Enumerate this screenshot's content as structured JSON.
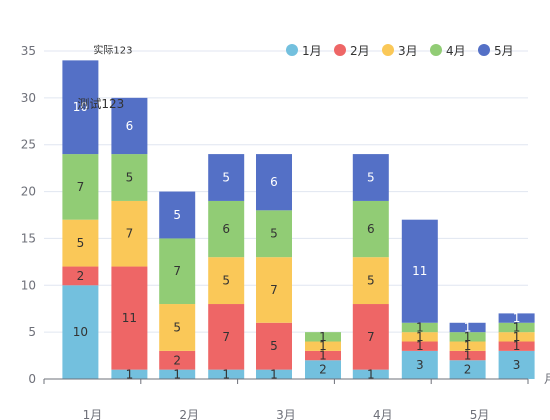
{
  "chart_data": {
    "type": "bar",
    "stacked": true,
    "categories": [
      "1月",
      "2月",
      "3月",
      "4月",
      "5月"
    ],
    "x_axis_unit": "月",
    "ylim": [
      0,
      35
    ],
    "yticks": [
      0,
      5,
      10,
      15,
      20,
      25,
      30,
      35
    ],
    "grid": true,
    "legend": {
      "position": "top-right",
      "items": [
        {
          "name": "1月",
          "color": "#73c0de"
        },
        {
          "name": "2月",
          "color": "#ee6666"
        },
        {
          "name": "3月",
          "color": "#fac858"
        },
        {
          "name": "4月",
          "color": "#91cc75"
        },
        {
          "name": "5月",
          "color": "#5470c6"
        }
      ]
    },
    "stacks": [
      {
        "label": "实际123",
        "series": [
          {
            "name": "1月",
            "values": [
              10,
              1,
              1,
              1,
              2
            ]
          },
          {
            "name": "2月",
            "values": [
              2,
              2,
              5,
              7,
              1
            ]
          },
          {
            "name": "3月",
            "values": [
              5,
              5,
              7,
              5,
              1
            ]
          },
          {
            "name": "4月",
            "values": [
              7,
              7,
              5,
              6,
              1
            ]
          },
          {
            "name": "5月",
            "values": [
              10,
              5,
              6,
              5,
              1
            ]
          }
        ]
      },
      {
        "label": "测试123",
        "series": [
          {
            "name": "1月",
            "values": [
              1,
              1,
              2,
              3,
              3
            ]
          },
          {
            "name": "2月",
            "values": [
              11,
              7,
              1,
              1,
              1
            ]
          },
          {
            "name": "3月",
            "values": [
              7,
              5,
              1,
              1,
              1
            ]
          },
          {
            "name": "4月",
            "values": [
              5,
              6,
              1,
              1,
              1
            ]
          },
          {
            "name": "5月",
            "values": [
              6,
              5,
              0,
              11,
              1
            ]
          }
        ]
      }
    ],
    "annotations": [
      {
        "text": "实际123",
        "category": "1月",
        "stack": 0
      },
      {
        "text": "测试123",
        "category": "1月",
        "stack": 1
      }
    ]
  }
}
